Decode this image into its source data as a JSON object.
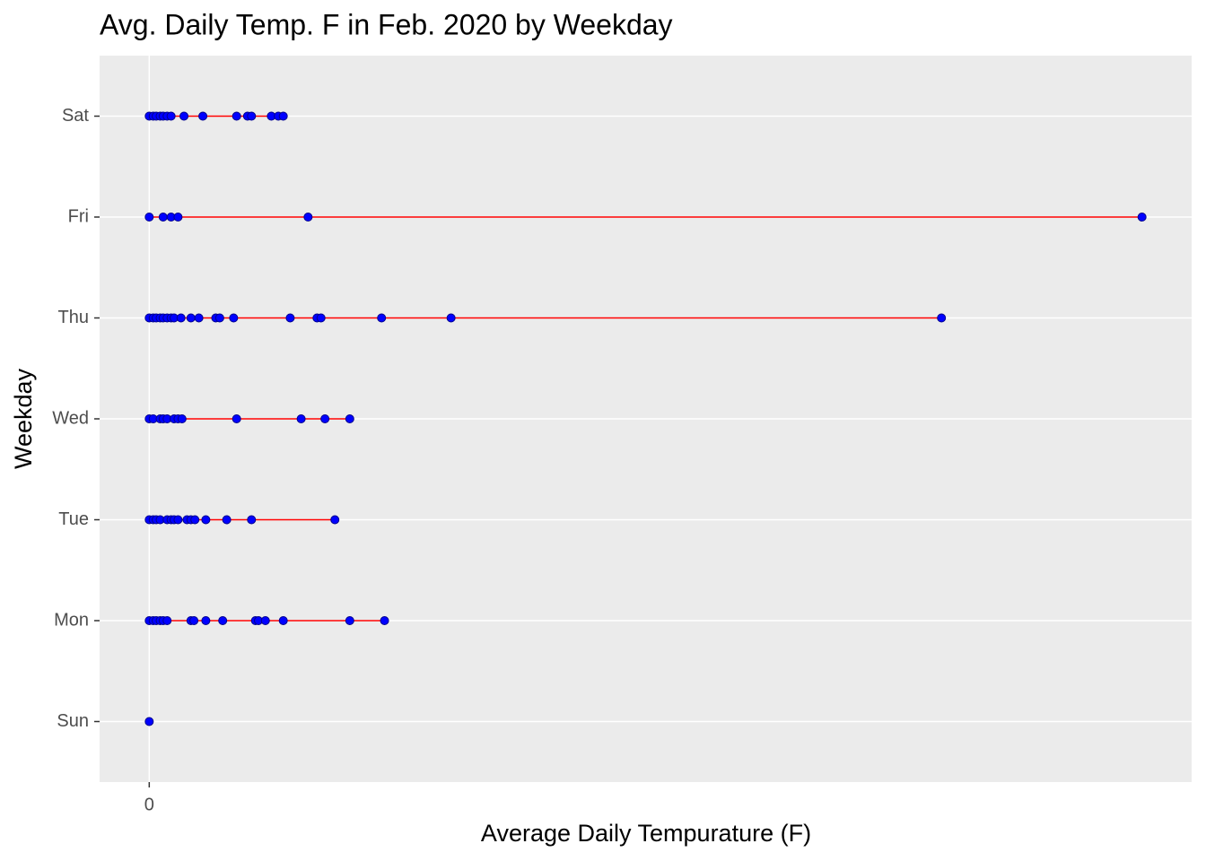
{
  "chart_data": {
    "type": "dot-range",
    "title": "Avg. Daily Temp. F in Feb. 2020 by Weekday",
    "x_label": "Average Daily Tempurature (F)",
    "y_label": "Weekday",
    "categories": [
      "Sun",
      "Mon",
      "Tue",
      "Wed",
      "Thu",
      "Fri",
      "Sat"
    ],
    "values": [
      [
        0
      ],
      [
        0,
        0.4,
        0.7,
        1.1,
        1.4,
        1.8,
        4.2,
        4.5,
        5.7,
        7.4,
        10.7,
        11.0,
        11.7,
        13.5,
        20.2,
        23.7
      ],
      [
        0,
        0.4,
        0.7,
        1.1,
        1.8,
        2.2,
        2.5,
        2.9,
        3.8,
        4.2,
        4.6,
        5.7,
        7.8,
        10.3,
        18.7
      ],
      [
        0,
        0.4,
        1.1,
        1.4,
        1.8,
        2.5,
        2.9,
        3.3,
        8.8,
        15.3,
        17.7,
        20.2
      ],
      [
        0,
        0.4,
        0.7,
        1.1,
        1.4,
        1.8,
        2.2,
        2.5,
        3.2,
        4.2,
        5.0,
        6.7,
        7.1,
        8.5,
        14.2,
        16.9,
        17.3,
        23.4,
        30.4,
        79.8
      ],
      [
        0,
        1.4,
        2.2,
        2.9,
        16.0,
        100
      ],
      [
        0,
        0.4,
        0.7,
        1.1,
        1.4,
        1.8,
        2.2,
        3.5,
        5.4,
        8.8,
        9.9,
        10.3,
        12.3,
        13.0,
        13.5
      ]
    ],
    "point_color": "blue",
    "line_color": "red",
    "xlim": [
      -5,
      105
    ],
    "xticks": [
      0
    ],
    "grid": true
  }
}
